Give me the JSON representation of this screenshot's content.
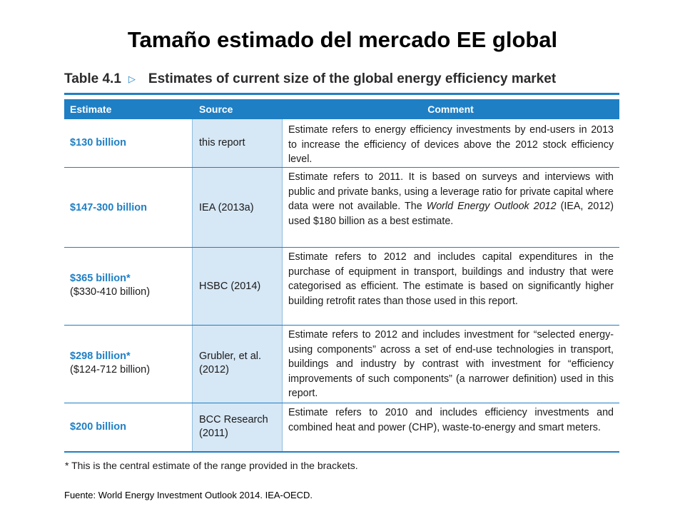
{
  "title": "Tamaño estimado del mercado EE global",
  "table": {
    "number": "Table 4.1",
    "arrow": "▷",
    "caption": "Estimates of current size of the global energy efficiency market",
    "headers": {
      "estimate": "Estimate",
      "source": "Source",
      "comment": "Comment"
    },
    "rows": [
      {
        "estimate": "$130 billion",
        "range": "",
        "source": "this report",
        "comment": "Estimate refers to energy efficiency investments by end-users in 2013 to increase the efficiency of devices above the 2012 stock efficiency level."
      },
      {
        "estimate": "$147-300 billion",
        "range": "",
        "source": "IEA (2013a)",
        "comment_a": "Estimate refers to 2011. It is based on surveys and interviews with public and private banks, using a leverage ratio for private capital where data were not available. The ",
        "comment_em": "World Energy Outlook 2012",
        "comment_b": " (IEA, 2012) used $180 billion as a best estimate."
      },
      {
        "estimate": "$365 billion*",
        "range": "($330-410 billion)",
        "source": "HSBC (2014)",
        "comment": "Estimate refers to 2012 and includes capital expenditures in the purchase of equipment in transport, buildings and industry that were categorised as efficient. The estimate is based on significantly higher building retrofit rates than those used in this report."
      },
      {
        "estimate": "$298 billion*",
        "range": "($124-712 billion)",
        "source": "Grubler, et al. (2012)",
        "comment": "Estimate refers to 2012 and includes investment for “selected energy-using components” across a set of end-use technologies in transport, buildings and industry by contrast with investment for “efficiency improvements of such components” (a narrower definition) used in this report."
      },
      {
        "estimate": "$200 billion",
        "range": "",
        "source": "BCC Research (2011)",
        "comment": "Estimate refers to 2010 and includes efficiency investments and combined heat and power (CHP), waste-to-energy and smart meters."
      }
    ],
    "footnote": "* This is the central estimate of the range provided in the brackets."
  },
  "source_note": "Fuente: World Energy Investment Outlook 2014. IEA-OECD.",
  "colors": {
    "accent": "#1f7fc4",
    "source_column_bg": "#d6e7f5"
  }
}
